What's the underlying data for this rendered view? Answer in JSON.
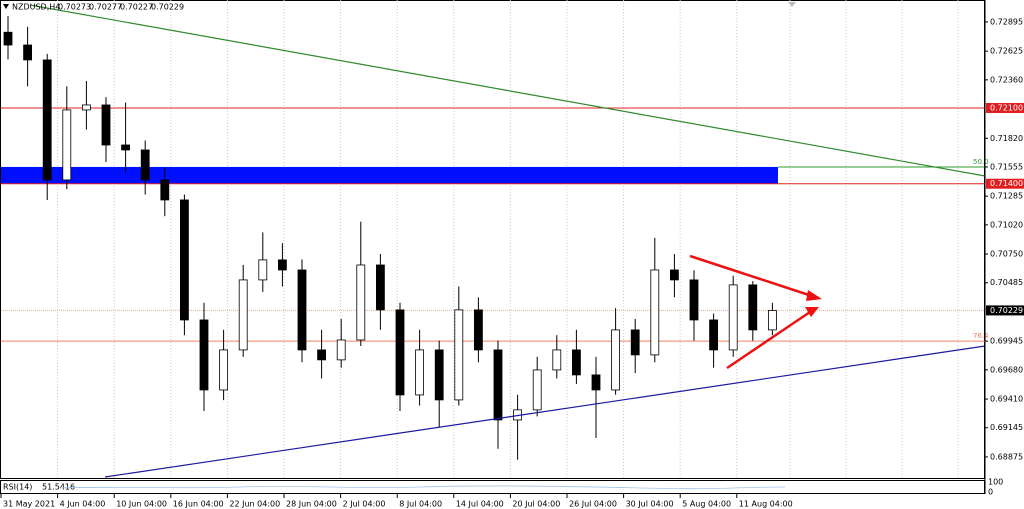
{
  "header": {
    "symbol": "NZDUSD,H4",
    "quote": [
      0.70273,
      0.70277,
      0.70227,
      0.70229
    ]
  },
  "price_axis": {
    "ylim": [
      0.68671,
      0.73098
    ],
    "ticks": [
      0.72895,
      0.72625,
      {
        "value": 0.7236,
        "label": "0.72360"
      },
      {
        "value": 0.7182,
        "label": "0.71820"
      },
      0.71555,
      0.71285,
      {
        "value": 0.7102,
        "label": "0.71020"
      },
      {
        "value": 0.7075,
        "label": "0.70750"
      },
      0.70485,
      0.69945,
      {
        "value": 0.6968,
        "label": "0.69680"
      },
      {
        "value": 0.6941,
        "label": "0.69410"
      },
      0.69145,
      0.68875
    ]
  },
  "levels": [
    {
      "value": 0.721,
      "label": "0.72100",
      "color": "#e02020"
    },
    {
      "value": 0.714,
      "label": "0.71400",
      "color": "#e02020"
    }
  ],
  "fib_levels": [
    {
      "value": 0.71555,
      "label": "50.0",
      "color": "#2e9a2e"
    },
    {
      "value": 0.69945,
      "label": "76.4",
      "color": "#f08060"
    }
  ],
  "current_price": 0.70229,
  "time_axis": [
    "31 May 2021",
    "4 Jun 04:00",
    "10 Jun 04:00",
    "16 Jun 04:00",
    "22 Jun 04:00",
    "28 Jun 04:00",
    "2 Jul 04:00",
    "8 Jul 04:00",
    "14 Jul 04:00",
    "20 Jul 04:00",
    "26 Jul 04:00",
    "30 Jul 04:00",
    "5 Aug 04:00",
    "11 Aug 04:00"
  ],
  "candles": [
    [
      0.728,
      0.7295,
      0.7255,
      0.72682
    ],
    [
      0.72682,
      0.7285,
      0.723,
      0.72544
    ],
    [
      0.72544,
      0.726,
      0.7125,
      0.71435
    ],
    [
      0.71435,
      0.723,
      0.7135,
      0.72082
    ],
    [
      0.72082,
      0.7235,
      0.719,
      0.72128
    ],
    [
      0.72128,
      0.722,
      0.716,
      0.71758
    ],
    [
      0.71758,
      0.7215,
      0.715,
      0.71712
    ],
    [
      0.71712,
      0.718,
      0.713,
      0.71435
    ],
    [
      0.71435,
      0.7155,
      0.711,
      0.7125
    ],
    [
      0.7125,
      0.713,
      0.7,
      0.70141
    ],
    [
      0.70141,
      0.703,
      0.693,
      0.69494
    ],
    [
      0.69494,
      0.7005,
      0.694,
      0.69864
    ],
    [
      0.69864,
      0.7065,
      0.698,
      0.70511
    ],
    [
      0.70511,
      0.7095,
      0.704,
      0.70696
    ],
    [
      0.70696,
      0.7085,
      0.7045,
      0.70603
    ],
    [
      0.70603,
      0.707,
      0.6975,
      0.69864
    ],
    [
      0.69864,
      0.7005,
      0.696,
      0.69772
    ],
    [
      0.69772,
      0.7015,
      0.697,
      0.69956
    ],
    [
      0.69956,
      0.7105,
      0.699,
      0.70649
    ],
    [
      0.70649,
      0.7075,
      0.7005,
      0.70234
    ],
    [
      0.70234,
      0.703,
      0.693,
      0.69448
    ],
    [
      0.69448,
      0.7005,
      0.6935,
      0.69864
    ],
    [
      0.69864,
      0.6995,
      0.6915,
      0.69402
    ],
    [
      0.69402,
      0.7045,
      0.6935,
      0.70234
    ],
    [
      0.70234,
      0.7035,
      0.6975,
      0.69864
    ],
    [
      0.69864,
      0.6995,
      0.6895,
      0.69217
    ],
    [
      0.69217,
      0.6945,
      0.6885,
      0.6931
    ],
    [
      0.6931,
      0.698,
      0.6925,
      0.69679
    ],
    [
      0.69679,
      0.7,
      0.696,
      0.69864
    ],
    [
      0.69864,
      0.7005,
      0.6955,
      0.69633
    ],
    [
      0.69633,
      0.698,
      0.6905,
      0.69494
    ],
    [
      0.69494,
      0.7025,
      0.6945,
      0.70049
    ],
    [
      0.70049,
      0.7015,
      0.6965,
      0.69818
    ],
    [
      0.69818,
      0.709,
      0.6975,
      0.70603
    ],
    [
      0.70603,
      0.7075,
      0.7035,
      0.70511
    ],
    [
      0.70511,
      0.706,
      0.6995,
      0.70141
    ],
    [
      0.70141,
      0.702,
      0.697,
      0.69864
    ],
    [
      0.69864,
      0.7055,
      0.698,
      0.70465
    ],
    [
      0.70465,
      0.705,
      0.6995,
      0.70049
    ],
    [
      0.70049,
      0.703,
      0.7,
      0.70229
    ]
  ],
  "indicator": {
    "name": "RSI(14)",
    "value": 51.5416,
    "scale": [
      100,
      0
    ]
  }
}
